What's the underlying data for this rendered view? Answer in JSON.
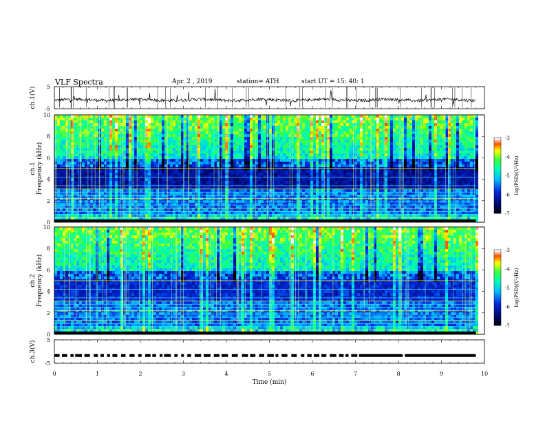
{
  "header": {
    "title": "VLF Spectra",
    "date": "Apr. 2 , 2019",
    "station": "station= ATH",
    "start": "start UT = 15: 40: 1"
  },
  "chart_data": [
    {
      "type": "line",
      "panel": "ch1-waveform",
      "ylabel": "ch.1(V)",
      "yticks": [
        "5",
        "-5"
      ],
      "ylim": [
        -5,
        5
      ],
      "xlim": [
        0,
        10
      ],
      "series": [
        {
          "x_range": [
            0,
            9.8
          ],
          "approx_level": -1,
          "spikes": true
        }
      ]
    },
    {
      "type": "heatmap",
      "panel": "ch1-spectrogram",
      "ylabel": "ch.1 Frequency (kHz)",
      "yticks": [
        "0",
        "2",
        "4",
        "6",
        "8",
        "10"
      ],
      "ylim": [
        0,
        10
      ],
      "xlim": [
        0,
        10
      ],
      "x_data_end": 9.8,
      "colorbar": {
        "label": "log(PSD)(V²/Hz)",
        "ticks": [
          "-3",
          "-4",
          "-5",
          "-6",
          "-7"
        ],
        "range": [
          -7,
          -3
        ]
      }
    },
    {
      "type": "heatmap",
      "panel": "ch2-spectrogram",
      "ylabel": "ch.2 Frequency (kHz)",
      "yticks": [
        "0",
        "2",
        "4",
        "6",
        "8",
        "10"
      ],
      "ylim": [
        0,
        10
      ],
      "xlim": [
        0,
        10
      ],
      "x_data_end": 9.8,
      "colorbar": {
        "label": "log(PSD)(V²/Hz)",
        "ticks": [
          "-3",
          "-4",
          "-5",
          "-6",
          "-7"
        ],
        "range": [
          -7,
          -3
        ]
      }
    },
    {
      "type": "line",
      "panel": "ch3-waveform",
      "ylabel": "ch.3(V)",
      "yticks": [
        "5",
        "-5"
      ],
      "ylim": [
        -5,
        5
      ],
      "xlim": [
        0,
        10
      ],
      "xlabel": "Time (min)",
      "xticks": [
        "0",
        "1",
        "2",
        "3",
        "4",
        "5",
        "6",
        "7",
        "8",
        "9",
        "10"
      ],
      "series": [
        {
          "x_range": [
            0,
            9.8
          ],
          "approx_level": -1.7,
          "style": "dashed-then-solid"
        }
      ]
    }
  ]
}
